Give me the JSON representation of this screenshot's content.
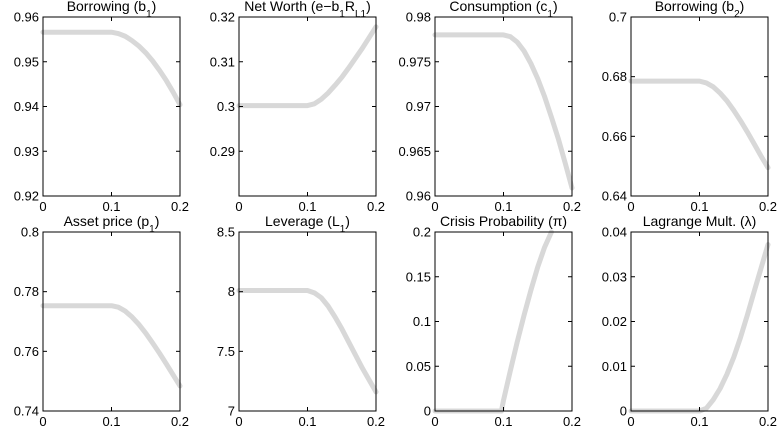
{
  "chart_data": [
    {
      "type": "line",
      "title": "Borrowing (b",
      "title_sub": "1",
      "title_end": ")",
      "xlim": [
        0,
        0.2
      ],
      "ylim": [
        0.92,
        0.96
      ],
      "xticks": [
        "0",
        "0.1",
        "0.2"
      ],
      "yticks": [
        "0.92",
        "0.93",
        "0.94",
        "0.95",
        "0.96"
      ],
      "x": [
        0,
        0.02,
        0.04,
        0.06,
        0.08,
        0.1,
        0.11,
        0.12,
        0.13,
        0.14,
        0.15,
        0.16,
        0.17,
        0.18,
        0.19,
        0.2
      ],
      "y": [
        0.9566,
        0.9566,
        0.9566,
        0.9566,
        0.9566,
        0.9566,
        0.9563,
        0.9557,
        0.9547,
        0.9535,
        0.952,
        0.9502,
        0.9481,
        0.9458,
        0.9432,
        0.9404
      ]
    },
    {
      "type": "line",
      "title": "Net Worth (e−b",
      "title_sub": "1",
      "title_mid": "R",
      "title_sub2": "L1",
      "title_end": ")",
      "xlim": [
        0,
        0.2
      ],
      "ylim": [
        0.28,
        0.32
      ],
      "xticks": [
        "0",
        "0.1",
        "0.2"
      ],
      "yticks": [
        "0.29",
        "0.3",
        "0.31",
        "0.32"
      ],
      "x": [
        0,
        0.02,
        0.04,
        0.06,
        0.08,
        0.1,
        0.11,
        0.12,
        0.13,
        0.14,
        0.15,
        0.16,
        0.17,
        0.18,
        0.19,
        0.2
      ],
      "y": [
        0.3002,
        0.3002,
        0.3002,
        0.3002,
        0.3002,
        0.3002,
        0.3006,
        0.3016,
        0.303,
        0.3047,
        0.3065,
        0.3086,
        0.3108,
        0.313,
        0.3154,
        0.3178
      ]
    },
    {
      "type": "line",
      "title": "Consumption (c",
      "title_sub": "1",
      "title_end": ")",
      "xlim": [
        0,
        0.2
      ],
      "ylim": [
        0.96,
        0.98
      ],
      "xticks": [
        "0",
        "0.1",
        "0.2"
      ],
      "yticks": [
        "0.96",
        "0.965",
        "0.97",
        "0.975",
        "0.98"
      ],
      "x": [
        0,
        0.02,
        0.04,
        0.06,
        0.08,
        0.1,
        0.11,
        0.12,
        0.13,
        0.14,
        0.15,
        0.16,
        0.17,
        0.18,
        0.19,
        0.2
      ],
      "y": [
        0.978,
        0.978,
        0.978,
        0.978,
        0.978,
        0.978,
        0.9778,
        0.9772,
        0.9762,
        0.9748,
        0.9731,
        0.9711,
        0.9688,
        0.9664,
        0.9637,
        0.9609
      ]
    },
    {
      "type": "line",
      "title": "Borrowing (b",
      "title_sub": "2",
      "title_end": ")",
      "xlim": [
        0,
        0.2
      ],
      "ylim": [
        0.64,
        0.7
      ],
      "xticks": [
        "0",
        "0.1",
        "0.2"
      ],
      "yticks": [
        "0.64",
        "0.66",
        "0.68",
        "0.7"
      ],
      "x": [
        0,
        0.02,
        0.04,
        0.06,
        0.08,
        0.1,
        0.11,
        0.12,
        0.13,
        0.14,
        0.15,
        0.16,
        0.17,
        0.18,
        0.19,
        0.2
      ],
      "y": [
        0.6785,
        0.6785,
        0.6785,
        0.6785,
        0.6785,
        0.6785,
        0.6779,
        0.6766,
        0.6745,
        0.6719,
        0.6687,
        0.6652,
        0.6614,
        0.6574,
        0.6533,
        0.6495
      ]
    },
    {
      "type": "line",
      "title": "Asset price (p",
      "title_sub": "1",
      "title_end": ")",
      "xlim": [
        0,
        0.2
      ],
      "ylim": [
        0.74,
        0.8
      ],
      "xticks": [
        "0",
        "0.1",
        "0.2"
      ],
      "yticks": [
        "0.74",
        "0.76",
        "0.78",
        "0.8"
      ],
      "x": [
        0,
        0.02,
        0.04,
        0.06,
        0.08,
        0.1,
        0.11,
        0.12,
        0.13,
        0.14,
        0.15,
        0.16,
        0.17,
        0.18,
        0.19,
        0.2
      ],
      "y": [
        0.7753,
        0.7753,
        0.7753,
        0.7753,
        0.7753,
        0.7753,
        0.7748,
        0.7735,
        0.7715,
        0.769,
        0.7661,
        0.7628,
        0.7594,
        0.7558,
        0.7521,
        0.7484
      ]
    },
    {
      "type": "line",
      "title": "Leverage (L",
      "title_sub": "1",
      "title_end": ")",
      "xlim": [
        0,
        0.2
      ],
      "ylim": [
        7,
        8.5
      ],
      "xticks": [
        "0",
        "0.1",
        "0.2"
      ],
      "yticks": [
        "7",
        "7.5",
        "8",
        "8.5"
      ],
      "x": [
        0,
        0.02,
        0.04,
        0.06,
        0.08,
        0.1,
        0.11,
        0.12,
        0.13,
        0.14,
        0.15,
        0.16,
        0.17,
        0.18,
        0.19,
        0.2
      ],
      "y": [
        8.01,
        8.01,
        8.01,
        8.01,
        8.01,
        8.01,
        7.99,
        7.95,
        7.88,
        7.79,
        7.69,
        7.58,
        7.47,
        7.36,
        7.26,
        7.16
      ]
    },
    {
      "type": "line",
      "title": "Crisis Probability (π)",
      "xlim": [
        0,
        0.2
      ],
      "ylim": [
        0,
        0.2
      ],
      "xticks": [
        "0",
        "0.1",
        "0.2"
      ],
      "yticks": [
        "0",
        "0.05",
        "0.1",
        "0.15",
        "0.2"
      ],
      "x": [
        0,
        0.02,
        0.04,
        0.06,
        0.08,
        0.097,
        0.1,
        0.11,
        0.12,
        0.13,
        0.14,
        0.15,
        0.16,
        0.17
      ],
      "y": [
        0,
        0,
        0,
        0,
        0,
        0,
        0.012,
        0.045,
        0.077,
        0.107,
        0.135,
        0.161,
        0.183,
        0.2
      ]
    },
    {
      "type": "line",
      "title": "Lagrange Mult. (λ)",
      "xlim": [
        0,
        0.2
      ],
      "ylim": [
        0,
        0.04
      ],
      "xticks": [
        "0",
        "0.1",
        "0.2"
      ],
      "yticks": [
        "0",
        "0.01",
        "0.02",
        "0.03",
        "0.04"
      ],
      "x": [
        0,
        0.02,
        0.04,
        0.06,
        0.08,
        0.1,
        0.11,
        0.12,
        0.13,
        0.14,
        0.15,
        0.16,
        0.17,
        0.18,
        0.19,
        0.2
      ],
      "y": [
        0,
        0,
        0,
        0,
        0,
        0,
        0.0006,
        0.0025,
        0.005,
        0.0082,
        0.012,
        0.0165,
        0.0215,
        0.0268,
        0.032,
        0.0372
      ]
    }
  ]
}
